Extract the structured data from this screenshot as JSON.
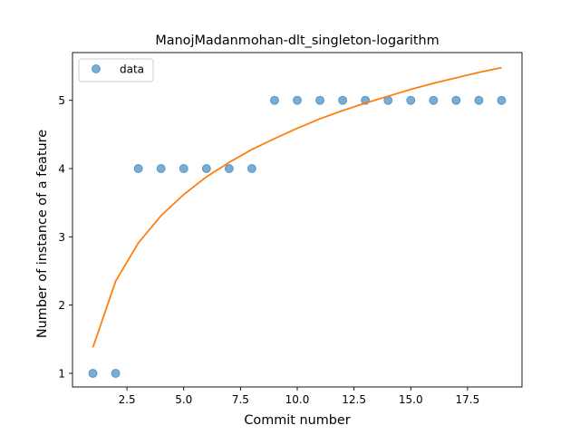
{
  "chart_data": {
    "type": "scatter",
    "title": "ManojMadanmohan-dlt_singleton-logarithm",
    "xlabel": "Commit number",
    "ylabel": "Number of instance of a feature",
    "xlim": [
      0.1,
      19.9
    ],
    "ylim": [
      0.8,
      5.7
    ],
    "xticks": [
      2.5,
      5.0,
      7.5,
      10.0,
      12.5,
      15.0,
      17.5
    ],
    "xtick_labels": [
      "2.5",
      "5.0",
      "7.5",
      "10.0",
      "12.5",
      "15.0",
      "17.5"
    ],
    "yticks": [
      1,
      2,
      3,
      4,
      5
    ],
    "ytick_labels": [
      "1",
      "2",
      "3",
      "4",
      "5"
    ],
    "grid": false,
    "legend": {
      "position": "top-left",
      "entries": [
        "data"
      ]
    },
    "colors": {
      "data": "#1f77b4",
      "fit": "#ff7f0e"
    },
    "series": [
      {
        "name": "data",
        "kind": "scatter",
        "x": [
          1,
          2,
          3,
          4,
          5,
          6,
          7,
          8,
          9,
          10,
          11,
          12,
          13,
          14,
          15,
          16,
          17,
          18,
          19
        ],
        "y": [
          1,
          1,
          4,
          4,
          4,
          4,
          4,
          4,
          5,
          5,
          5,
          5,
          5,
          5,
          5,
          5,
          5,
          5,
          5
        ]
      },
      {
        "kind": "line",
        "x": [
          1,
          2,
          3,
          4,
          5,
          6,
          7,
          8,
          9,
          10,
          11,
          12,
          13,
          14,
          15,
          16,
          17,
          18,
          19
        ],
        "y": [
          1.38,
          2.35,
          2.91,
          3.31,
          3.62,
          3.88,
          4.09,
          4.28,
          4.44,
          4.59,
          4.73,
          4.85,
          4.96,
          5.06,
          5.16,
          5.25,
          5.33,
          5.41,
          5.48
        ]
      }
    ]
  }
}
